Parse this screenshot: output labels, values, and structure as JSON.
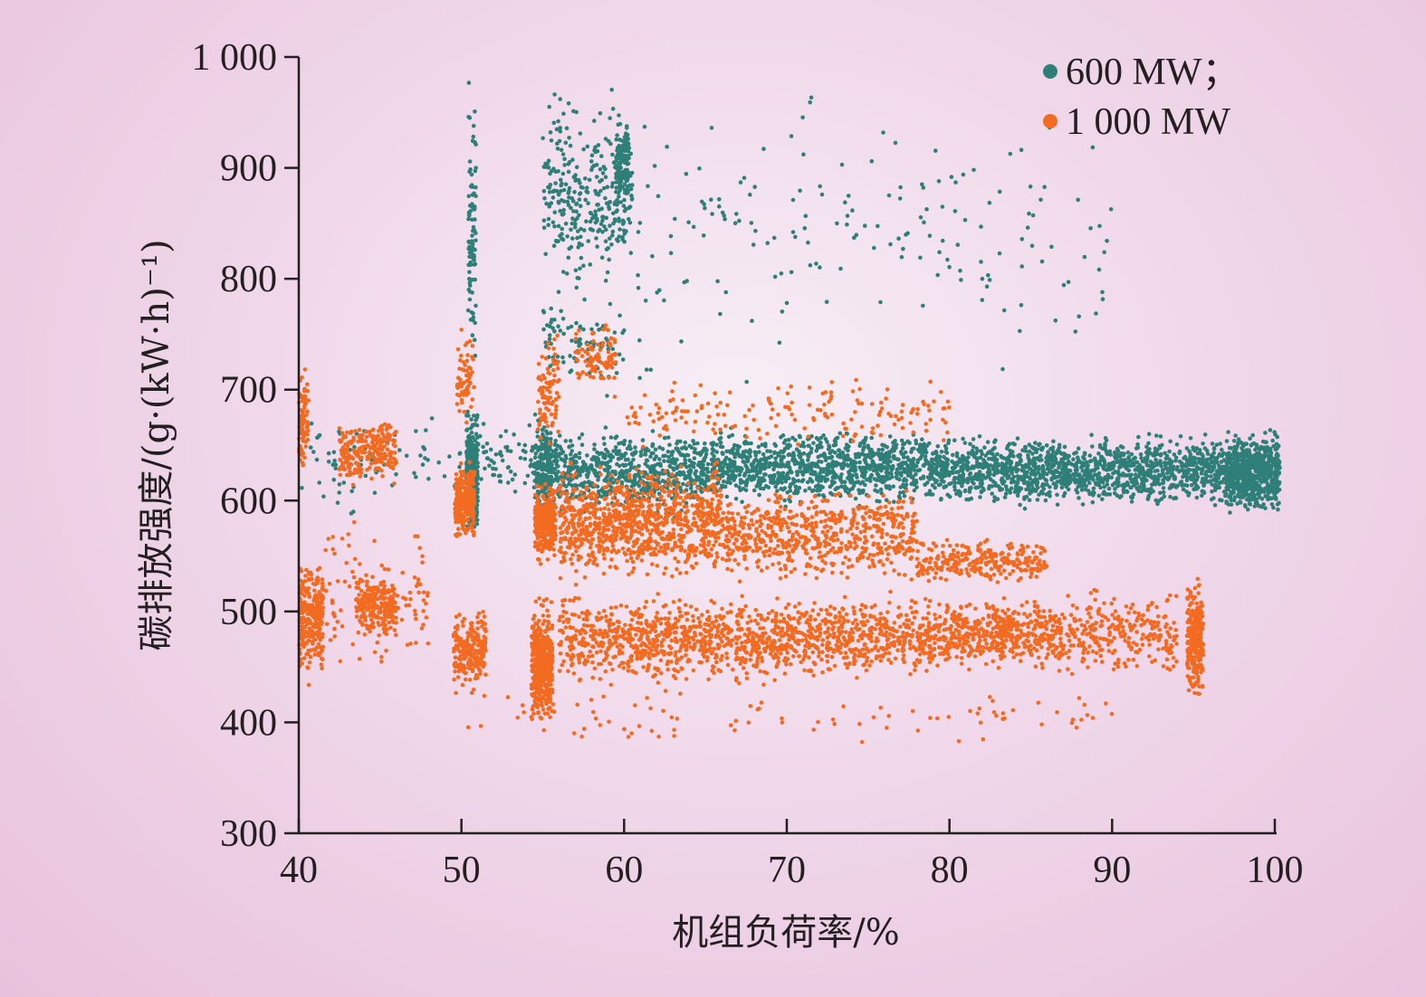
{
  "chart_data": {
    "type": "scatter",
    "title": "",
    "xlabel": "机组负荷率/%",
    "ylabel": "碳排放强度/(g·(kW·h)⁻¹)",
    "xlim": [
      40,
      100
    ],
    "ylim": [
      300,
      1000
    ],
    "x_ticks": [
      40,
      50,
      60,
      70,
      80,
      90,
      100
    ],
    "y_ticks": [
      300,
      400,
      500,
      600,
      700,
      800,
      900,
      1000
    ],
    "x_tick_labels": [
      "40",
      "50",
      "60",
      "70",
      "80",
      "90",
      "100"
    ],
    "y_tick_labels": [
      "300",
      "400",
      "500",
      "600",
      "700",
      "800",
      "900",
      "1 000"
    ],
    "grid": false,
    "legend_position": "top-right",
    "series": [
      {
        "name": "600 MW；",
        "color": "#2f7f79",
        "clusters": [
          {
            "x": [
              50.3,
              51.0
            ],
            "y": [
              560,
              690
            ],
            "n": 320
          },
          {
            "x": [
              50.4,
              50.9
            ],
            "y": [
              690,
              1000
            ],
            "n": 90
          },
          {
            "x": [
              54.5,
              55.5
            ],
            "y": [
              570,
              690
            ],
            "n": 160
          },
          {
            "x": [
              55.0,
              60.5
            ],
            "y": [
              780,
              980
            ],
            "n": 320
          },
          {
            "x": [
              59.5,
              60.3
            ],
            "y": [
              860,
              950
            ],
            "n": 120
          },
          {
            "x": [
              55.0,
              60.0
            ],
            "y": [
              690,
              800
            ],
            "n": 90
          },
          {
            "x": [
              55,
              65
            ],
            "y": [
              580,
              670
            ],
            "n": 700
          },
          {
            "x": [
              65,
              80
            ],
            "y": [
              590,
              670
            ],
            "n": 1100
          },
          {
            "x": [
              80,
              97
            ],
            "y": [
              590,
              665
            ],
            "n": 1300
          },
          {
            "x": [
              97,
              100.3
            ],
            "y": [
              580,
              670
            ],
            "n": 700
          },
          {
            "x": [
              60,
              90
            ],
            "y": [
              680,
              980
            ],
            "n": 180
          },
          {
            "x": [
              40,
              50
            ],
            "y": [
              580,
              690
            ],
            "n": 80
          },
          {
            "x": [
              51,
              54.5
            ],
            "y": [
              590,
              680
            ],
            "n": 60
          }
        ]
      },
      {
        "name": "1 000 MW",
        "color": "#f26b21",
        "clusters": [
          {
            "x": [
              40.0,
              40.6
            ],
            "y": [
              610,
              730
            ],
            "n": 80
          },
          {
            "x": [
              40.0,
              41.5
            ],
            "y": [
              430,
              560
            ],
            "n": 260
          },
          {
            "x": [
              42.5,
              46.0
            ],
            "y": [
              610,
              680
            ],
            "n": 220
          },
          {
            "x": [
              43.5,
              46.0
            ],
            "y": [
              470,
              540
            ],
            "n": 200
          },
          {
            "x": [
              41.5,
              48.0
            ],
            "y": [
              420,
              600
            ],
            "n": 110
          },
          {
            "x": [
              49.5,
              51.5
            ],
            "y": [
              420,
              510
            ],
            "n": 220
          },
          {
            "x": [
              49.6,
              50.8
            ],
            "y": [
              560,
              640
            ],
            "n": 240
          },
          {
            "x": [
              49.7,
              50.8
            ],
            "y": [
              660,
              760
            ],
            "n": 60
          },
          {
            "x": [
              54.3,
              55.6
            ],
            "y": [
              390,
              520
            ],
            "n": 420
          },
          {
            "x": [
              54.5,
              55.8
            ],
            "y": [
              540,
              620
            ],
            "n": 300
          },
          {
            "x": [
              54.7,
              56.0
            ],
            "y": [
              640,
              760
            ],
            "n": 90
          },
          {
            "x": [
              57.0,
              59.5
            ],
            "y": [
              690,
              770
            ],
            "n": 90
          },
          {
            "x": [
              56,
              66
            ],
            "y": [
              520,
              640
            ],
            "n": 900
          },
          {
            "x": [
              56,
              75
            ],
            "y": [
              430,
              520
            ],
            "n": 1100
          },
          {
            "x": [
              66,
              78
            ],
            "y": [
              520,
              620
            ],
            "n": 600
          },
          {
            "x": [
              75,
              87
            ],
            "y": [
              440,
              520
            ],
            "n": 700
          },
          {
            "x": [
              78,
              86
            ],
            "y": [
              520,
              570
            ],
            "n": 260
          },
          {
            "x": [
              87,
              94
            ],
            "y": [
              430,
              530
            ],
            "n": 260
          },
          {
            "x": [
              94.6,
              95.6
            ],
            "y": [
              410,
              540
            ],
            "n": 280
          },
          {
            "x": [
              60,
              80
            ],
            "y": [
              640,
              720
            ],
            "n": 170
          },
          {
            "x": [
              50,
              90
            ],
            "y": [
              370,
              440
            ],
            "n": 90
          }
        ]
      }
    ]
  }
}
